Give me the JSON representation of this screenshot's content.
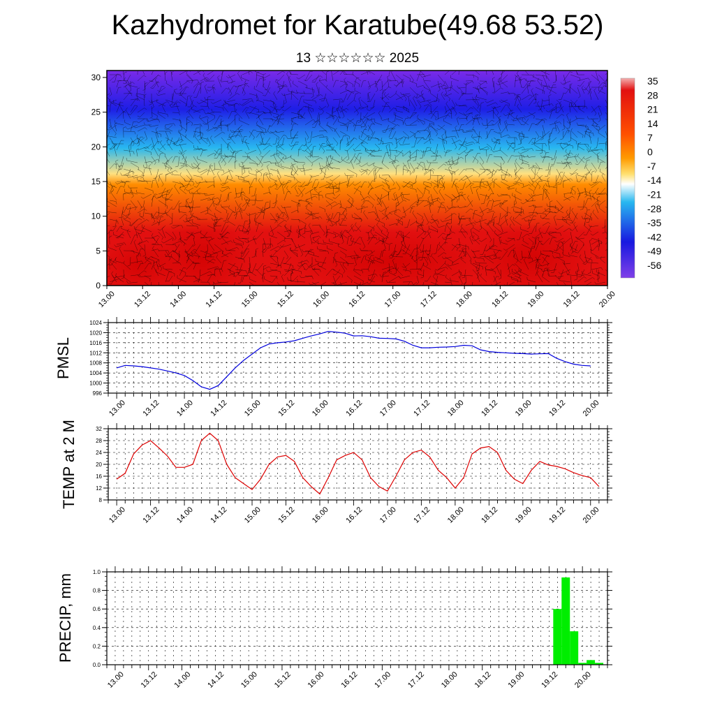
{
  "header": {
    "title": "Kazhydromet for Karatube(49.68 53.52)",
    "subtitle": "13 ☆☆☆☆☆☆ 2025"
  },
  "chart_data": [
    {
      "type": "heatmap",
      "y_ticks": [
        "0",
        "5",
        "10",
        "15",
        "20",
        "25",
        "30"
      ],
      "ylim": [
        0,
        31
      ],
      "x_ticks": [
        "13.00",
        "13.12",
        "14.00",
        "14.12",
        "15.00",
        "15.12",
        "16.00",
        "16.12",
        "17.00",
        "17.12",
        "18.00",
        "18.12",
        "19.00",
        "19.12",
        "20.00"
      ],
      "colorbar_labels": [
        "35",
        "28",
        "21",
        "14",
        "7",
        "0",
        "-7",
        "-14",
        "-21",
        "-28",
        "-35",
        "-42",
        "-49",
        "-56"
      ],
      "colors": {
        "hot": "#e21010",
        "orange": "#ff8c00",
        "yellow": "#ffe080",
        "cyan": "#28b8f0",
        "blue": "#1e1ee6",
        "violet": "#7a2ae8"
      }
    },
    {
      "type": "line",
      "ylabel": "PMSL",
      "y_ticks": [
        "996",
        "1000",
        "1004",
        "1008",
        "1012",
        "1016",
        "1020",
        "1024"
      ],
      "ylim": [
        996,
        1024
      ],
      "x_ticks": [
        "13.00",
        "13.12",
        "14.00",
        "14.12",
        "15.00",
        "15.12",
        "16.00",
        "16.12",
        "17.00",
        "17.12",
        "18.00",
        "18.12",
        "19.00",
        "19.12",
        "20.00"
      ],
      "color": "#0000dd",
      "values": [
        1006.0,
        1007.0,
        1006.8,
        1006.5,
        1006.0,
        1005.5,
        1004.8,
        1004.0,
        1003.0,
        1001.0,
        998.5,
        997.5,
        999.0,
        1002.5,
        1006.0,
        1009.0,
        1011.5,
        1014.0,
        1015.5,
        1016.0,
        1016.3,
        1016.8,
        1017.8,
        1018.7,
        1019.5,
        1020.5,
        1020.2,
        1019.8,
        1018.7,
        1018.8,
        1018.4,
        1017.8,
        1017.7,
        1017.5,
        1016.6,
        1015.0,
        1014.0,
        1014.0,
        1014.2,
        1014.3,
        1014.5,
        1015.0,
        1014.8,
        1013.2,
        1012.5,
        1012.2,
        1012.0,
        1011.8,
        1011.7,
        1011.5,
        1011.6,
        1011.7,
        1009.8,
        1008.5,
        1007.5,
        1007.0,
        1006.8
      ],
      "x_start": 1,
      "x_end": 57
    },
    {
      "type": "line",
      "ylabel": "TEMP at 2 M",
      "y_ticks": [
        "8",
        "12",
        "16",
        "20",
        "24",
        "28",
        "32"
      ],
      "ylim": [
        8,
        32
      ],
      "x_ticks": [
        "13.00",
        "13.12",
        "14.00",
        "14.12",
        "15.00",
        "15.12",
        "16.00",
        "16.12",
        "17.00",
        "17.12",
        "18.00",
        "18.12",
        "19.00",
        "19.12",
        "20.00"
      ],
      "color": "#dd0000",
      "values": [
        15.0,
        17.0,
        23.5,
        26.5,
        28.0,
        25.5,
        22.8,
        19.0,
        19.0,
        20.0,
        28.0,
        30.5,
        28.0,
        20.0,
        15.5,
        13.5,
        11.5,
        15.0,
        20.0,
        22.5,
        23.0,
        21.0,
        15.5,
        12.5,
        10.0,
        15.5,
        21.5,
        23.0,
        24.0,
        21.5,
        15.5,
        12.5,
        11.0,
        16.0,
        21.5,
        24.0,
        24.8,
        22.5,
        18.0,
        15.5,
        12.0,
        15.5,
        23.5,
        25.5,
        26.0,
        24.0,
        18.0,
        15.0,
        13.5,
        18.0,
        21.0,
        19.8,
        19.3,
        18.5,
        17.2,
        16.2,
        15.5,
        12.5
      ],
      "x_start": 1,
      "x_end": 58
    },
    {
      "type": "bar",
      "ylabel": "PRECIP, mm",
      "y_ticks": [
        "0.0",
        "0.2",
        "0.4",
        "0.6",
        "0.8",
        "1.0"
      ],
      "ylim": [
        0,
        1
      ],
      "x_ticks": [
        "13.00",
        "13.12",
        "14.00",
        "14.12",
        "15.00",
        "15.12",
        "16.00",
        "16.12",
        "17.00",
        "17.12",
        "18.00",
        "18.12",
        "19.00",
        "19.12",
        "20.00"
      ],
      "color": "#00ee00",
      "bars": [
        {
          "x": 54,
          "value": 0.6
        },
        {
          "x": 55,
          "value": 0.94
        },
        {
          "x": 56,
          "value": 0.36
        },
        {
          "x": 57,
          "value": 0.02
        },
        {
          "x": 58,
          "value": 0.05
        },
        {
          "x": 59,
          "value": 0.02
        }
      ]
    }
  ]
}
